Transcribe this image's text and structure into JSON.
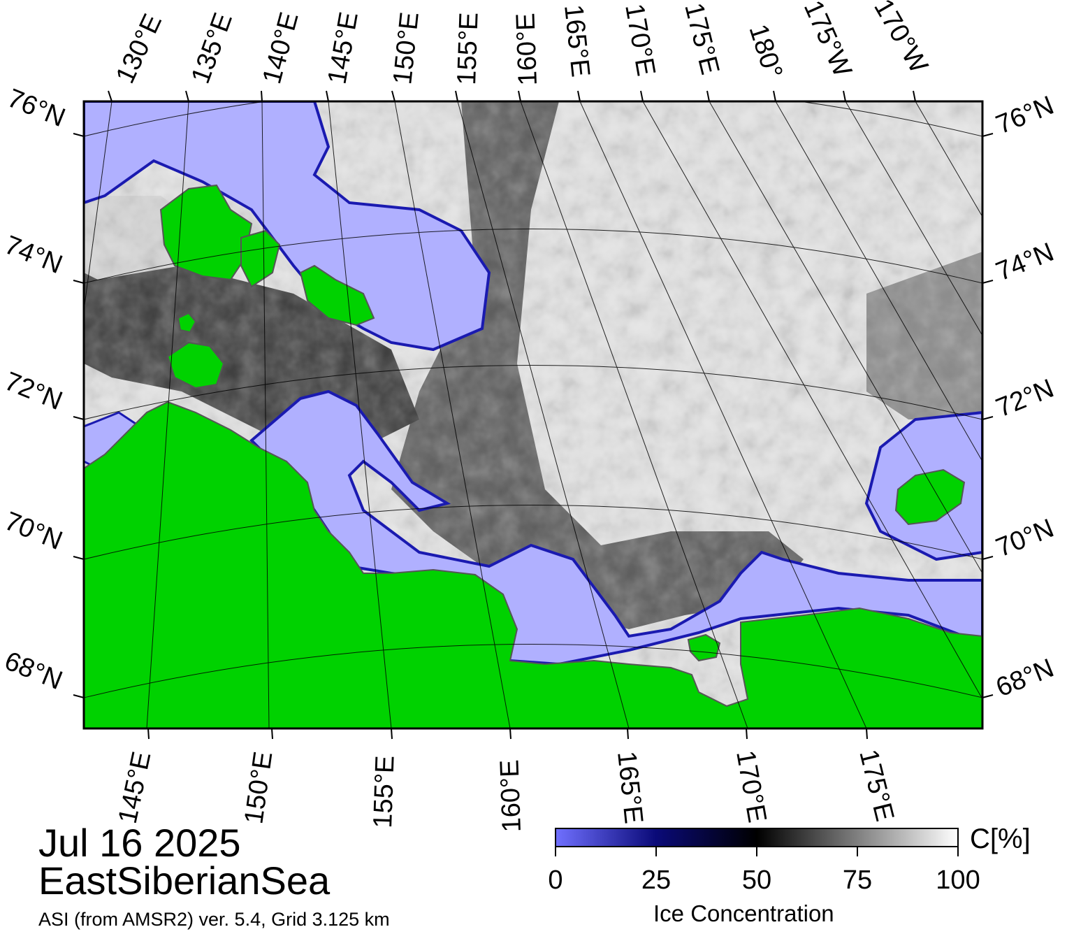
{
  "map": {
    "date": "Jul 16 2025",
    "region": "EastSiberianSea",
    "source": "ASI (from AMSR2) ver. 5.4,  Grid 3.125 km",
    "top_lon_labels": [
      "130°E",
      "135°E",
      "140°E",
      "145°E",
      "150°E",
      "155°E",
      "160°E",
      "165°E",
      "170°E",
      "175°E",
      "180°",
      "175°W",
      "170°W"
    ],
    "bottom_lon_labels": [
      "145°E",
      "150°E",
      "155°E",
      "160°E",
      "165°E",
      "170°E",
      "175°E"
    ],
    "left_lat_labels": [
      "76°N",
      "74°N",
      "72°N",
      "70°N",
      "68°N"
    ],
    "right_lat_labels": [
      "76°N",
      "74°N",
      "72°N",
      "70°N",
      "68°N"
    ],
    "colors": {
      "land": "#00d200",
      "open_water": "#b0b0ff",
      "coast": "#7a7a7a",
      "ice_low": "#0a0a78",
      "ice_mid": "#000000",
      "ice_high": "#ffffff"
    }
  },
  "colorbar": {
    "title": "Ice Concentration",
    "unit": "C[%]",
    "ticks": [
      "0",
      "25",
      "50",
      "75",
      "100"
    ],
    "min": 0,
    "max": 100
  }
}
